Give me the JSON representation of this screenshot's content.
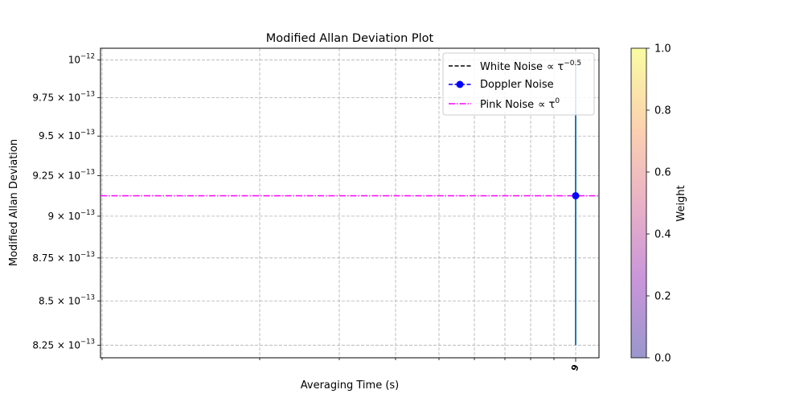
{
  "chart_data": {
    "type": "scatter",
    "title": "Modified Allan Deviation Plot",
    "xlabel": "Averaging Time (s)",
    "ylabel": "Modified Allan Deviation",
    "x_scale": "log",
    "y_scale": "log",
    "ylim": [
      8.18e-13,
      1.008e-12
    ],
    "y_ticks": [
      {
        "value": 8.25e-13,
        "mant": "8.25",
        "exp": "−13"
      },
      {
        "value": 8.5e-13,
        "mant": "8.5",
        "exp": "−13"
      },
      {
        "value": 8.75e-13,
        "mant": "8.75",
        "exp": "−13"
      },
      {
        "value": 9e-13,
        "mant": "9",
        "exp": "−13"
      },
      {
        "value": 9.25e-13,
        "mant": "9.25",
        "exp": "−13"
      },
      {
        "value": 9.5e-13,
        "mant": "9.5",
        "exp": "−13"
      },
      {
        "value": 9.75e-13,
        "mant": "9.75",
        "exp": "−13"
      },
      {
        "value": 1e-12,
        "mant": "",
        "exp": "−12"
      }
    ],
    "x_tick_label": "9",
    "grid": true,
    "series": [
      {
        "name": "White Noise",
        "name_math": "∝ τ",
        "name_exp": "−0.5",
        "style": "dashed",
        "color": "#000000",
        "x": [],
        "y": []
      },
      {
        "name": "Doppler Noise",
        "style": "dashed-marker",
        "color": "#0000ff",
        "x": [
          9
        ],
        "y": [
          9.125e-13
        ]
      },
      {
        "name": "Pink Noise",
        "name_math": "∝ τ",
        "name_exp": "0",
        "style": "dashdot",
        "color": "#ff00ff",
        "level": 9.125e-13
      }
    ],
    "vertical_span": {
      "x": 9,
      "ymin": 8.25e-13,
      "ymax": 1e-12,
      "color": "#1f77b4"
    },
    "legend_position": "top-right",
    "colorbar": {
      "label": "Weight",
      "min": 0.0,
      "max": 1.0,
      "ticks": [
        "0.0",
        "0.2",
        "0.4",
        "0.6",
        "0.8",
        "1.0"
      ],
      "cmap": "plasma",
      "alpha": 0.4
    }
  }
}
